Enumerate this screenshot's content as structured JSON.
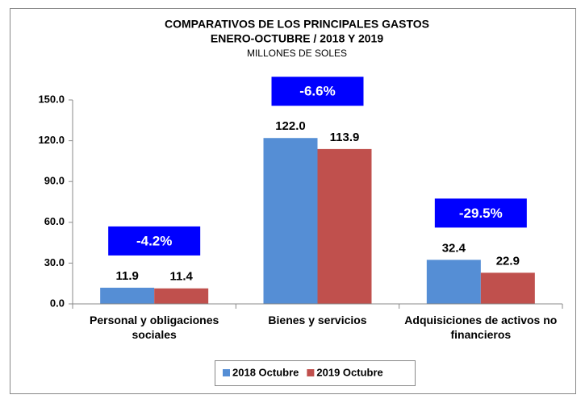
{
  "chart_data": {
    "type": "bar",
    "title": "COMPARATIVOS DE LOS PRINCIPALES GASTOS",
    "subtitle": "ENERO-OCTUBRE / 2018 Y 2019",
    "y_label": "MILLONES DE SOLES",
    "categories": [
      "Personal y obligaciones sociales",
      "Bienes y servicios",
      "Adquisiciones de activos no financieros"
    ],
    "series": [
      {
        "name": "2018 Octubre",
        "color": "#558ed5",
        "values": [
          11.9,
          122.0,
          32.4
        ],
        "value_labels": [
          "11.9",
          "122.0",
          "32.4"
        ]
      },
      {
        "name": "2019 Octubre",
        "color": "#c0504d",
        "values": [
          11.4,
          113.9,
          22.9
        ],
        "value_labels": [
          "11.4",
          "113.9",
          "22.9"
        ]
      }
    ],
    "annotations": [
      "-4.2%",
      "-6.6%",
      "-29.5%"
    ],
    "annotation_color": "#0000ff",
    "ylim": [
      0,
      150
    ],
    "yticks": [
      {
        "value": 0,
        "label": "0.0"
      },
      {
        "value": 30,
        "label": "30.0"
      },
      {
        "value": 60,
        "label": "60.0"
      },
      {
        "value": 90,
        "label": "90.0"
      },
      {
        "value": 120,
        "label": "120.0"
      },
      {
        "value": 150,
        "label": "150.0"
      }
    ],
    "grid": false,
    "legend": "bottom"
  }
}
